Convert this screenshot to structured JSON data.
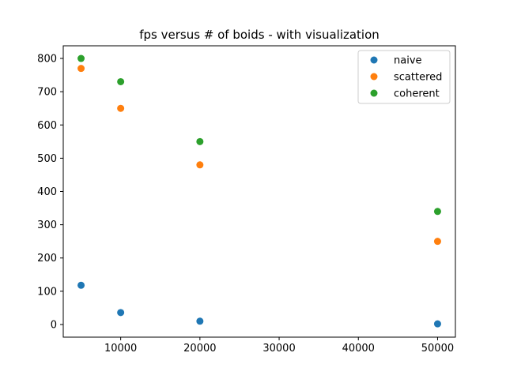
{
  "chart_data": {
    "type": "scatter",
    "title": "fps versus # of boids - with visualization",
    "xlabel": "",
    "ylabel": "",
    "xlim": [
      2750,
      52250
    ],
    "ylim": [
      -38,
      838
    ],
    "xticks": [
      10000,
      20000,
      30000,
      40000,
      50000
    ],
    "yticks": [
      0,
      100,
      200,
      300,
      400,
      500,
      600,
      700,
      800
    ],
    "grid": false,
    "legend_position": "top-right",
    "series": [
      {
        "name": "naive",
        "color": "#1f77b4",
        "points": [
          [
            5000,
            118
          ],
          [
            10000,
            36
          ],
          [
            20000,
            10
          ],
          [
            50000,
            2
          ]
        ]
      },
      {
        "name": "scattered",
        "color": "#ff7f0e",
        "points": [
          [
            5000,
            770
          ],
          [
            10000,
            650
          ],
          [
            20000,
            480
          ],
          [
            50000,
            250
          ]
        ]
      },
      {
        "name": "coherent",
        "color": "#2ca02c",
        "points": [
          [
            5000,
            800
          ],
          [
            10000,
            730
          ],
          [
            20000,
            550
          ],
          [
            50000,
            340
          ]
        ]
      }
    ]
  }
}
